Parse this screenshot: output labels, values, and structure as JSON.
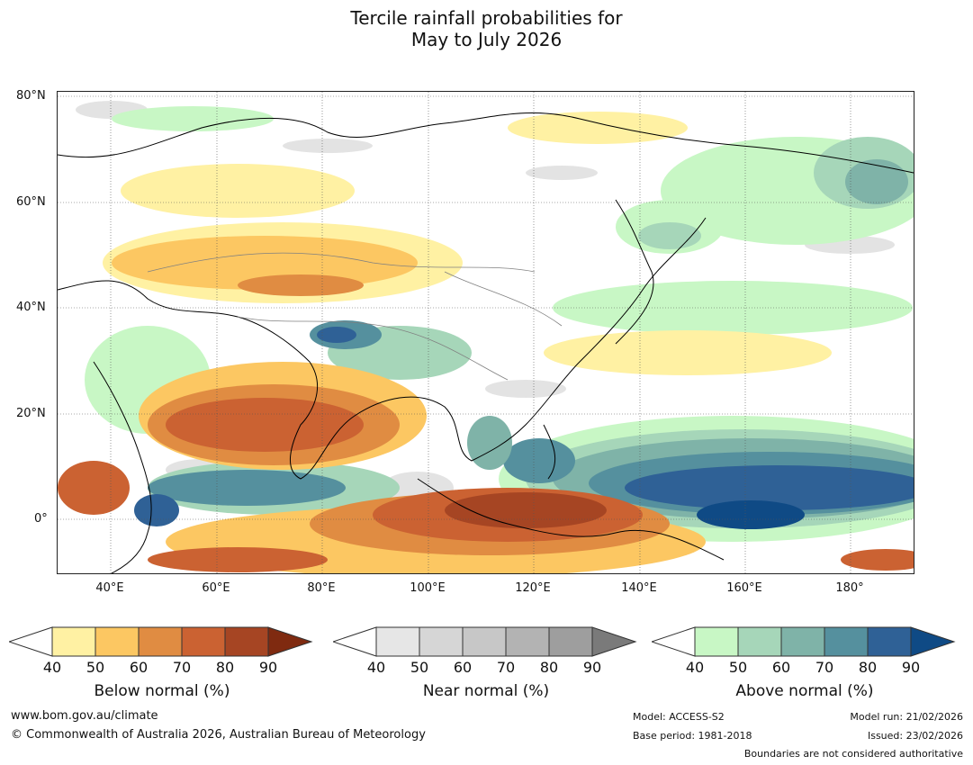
{
  "title": {
    "line1": "Tercile rainfall probabilities for",
    "line2": "May to July 2026"
  },
  "map": {
    "lat_labels": [
      "80°N",
      "60°N",
      "40°N",
      "20°N",
      "0°"
    ],
    "lon_labels": [
      "40°E",
      "60°E",
      "80°E",
      "100°E",
      "120°E",
      "140°E",
      "160°E",
      "180°"
    ],
    "lon_range_deg": [
      30,
      192
    ],
    "lat_range_deg": [
      -10,
      81
    ]
  },
  "legends": [
    {
      "caption": "Below normal (%)",
      "ticks": [
        "40",
        "50",
        "60",
        "70",
        "80",
        "90"
      ],
      "colors": [
        "#fff1a3",
        "#fcc762",
        "#e08c42",
        "#cb6232",
        "#a64523",
        "#7f2a10"
      ],
      "low_side_open": true
    },
    {
      "caption": "Near normal (%)",
      "ticks": [
        "40",
        "50",
        "60",
        "70",
        "80",
        "90"
      ],
      "colors": [
        "#e6e6e6",
        "#d6d6d6",
        "#c7c7c7",
        "#b3b3b3",
        "#9e9e9e",
        "#7a7a7a"
      ],
      "low_side_open": true
    },
    {
      "caption": "Above normal (%)",
      "ticks": [
        "40",
        "50",
        "60",
        "70",
        "80",
        "90"
      ],
      "colors": [
        "#c8f7c5",
        "#a6d6b9",
        "#7fb3a8",
        "#55909e",
        "#2f6196",
        "#0f4a85"
      ],
      "low_side_open": true
    }
  ],
  "footer": {
    "website": "www.bom.gov.au/climate",
    "copyright": "© Commonwealth of Australia 2026, Australian Bureau of Meteorology",
    "model": "Model: ACCESS-S2",
    "base_period": "Base period: 1981-2018",
    "model_run": "Model run: 21/02/2026",
    "issued": "Issued: 23/02/2026",
    "disclaimer": "Boundaries are not considered authoritative"
  }
}
